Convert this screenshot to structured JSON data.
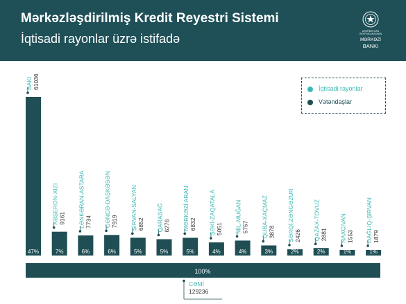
{
  "header": {
    "title": "Mərkəzləşdirilmiş Kredit Reyestri Sistemi",
    "subtitle": "İqtisadi rayonlar üzrə istifadə"
  },
  "logo": {
    "line1": "AZƏRBAYCAN",
    "line2": "RESPUBLİKASININ",
    "line3": "MƏRKƏZİ",
    "line4": "BANKI"
  },
  "legend": {
    "items": [
      {
        "label": "İqtisadi rayonlar",
        "color": "#3fb8b4"
      },
      {
        "label": "Vətəndaşlar",
        "color": "#1f4e55"
      }
    ]
  },
  "colors": {
    "bar": "#1f4e55",
    "accent": "#3fb8b4",
    "header_bg": "#1f5058"
  },
  "chart_data": {
    "type": "bar",
    "categories": [
      "BAKI",
      "ABŞERON-XIZI",
      "LƏNKƏRAN-ASTARA",
      "GƏNCƏ-DAŞKƏSƏN",
      "ŞİRVAN-SALYAN",
      "QARABAĞ",
      "MƏRKƏZİ ARAN",
      "ŞƏKİ-ZAQATALA",
      "MİL-MUĞAN",
      "QUBA-XAÇMAZ",
      "ŞƏRQİ ZƏNGƏZUR",
      "QAZAX-TOVUZ",
      "NAXÇIVAN",
      "DAĞLIQ-ŞİRVAN"
    ],
    "values": [
      61036,
      9161,
      7734,
      7919,
      6852,
      6276,
      6832,
      5051,
      5757,
      3878,
      2426,
      2881,
      1553,
      1879
    ],
    "percents": [
      "47%",
      "7%",
      "6%",
      "6%",
      "5%",
      "5%",
      "5%",
      "4%",
      "4%",
      "3%",
      "2%",
      "2%",
      "1%",
      "1%"
    ],
    "total": {
      "label": "CƏMİ",
      "value": "129236",
      "percent": "100%"
    },
    "ylim": [
      0,
      61036
    ],
    "grid": false,
    "legend_position": "top-right"
  }
}
